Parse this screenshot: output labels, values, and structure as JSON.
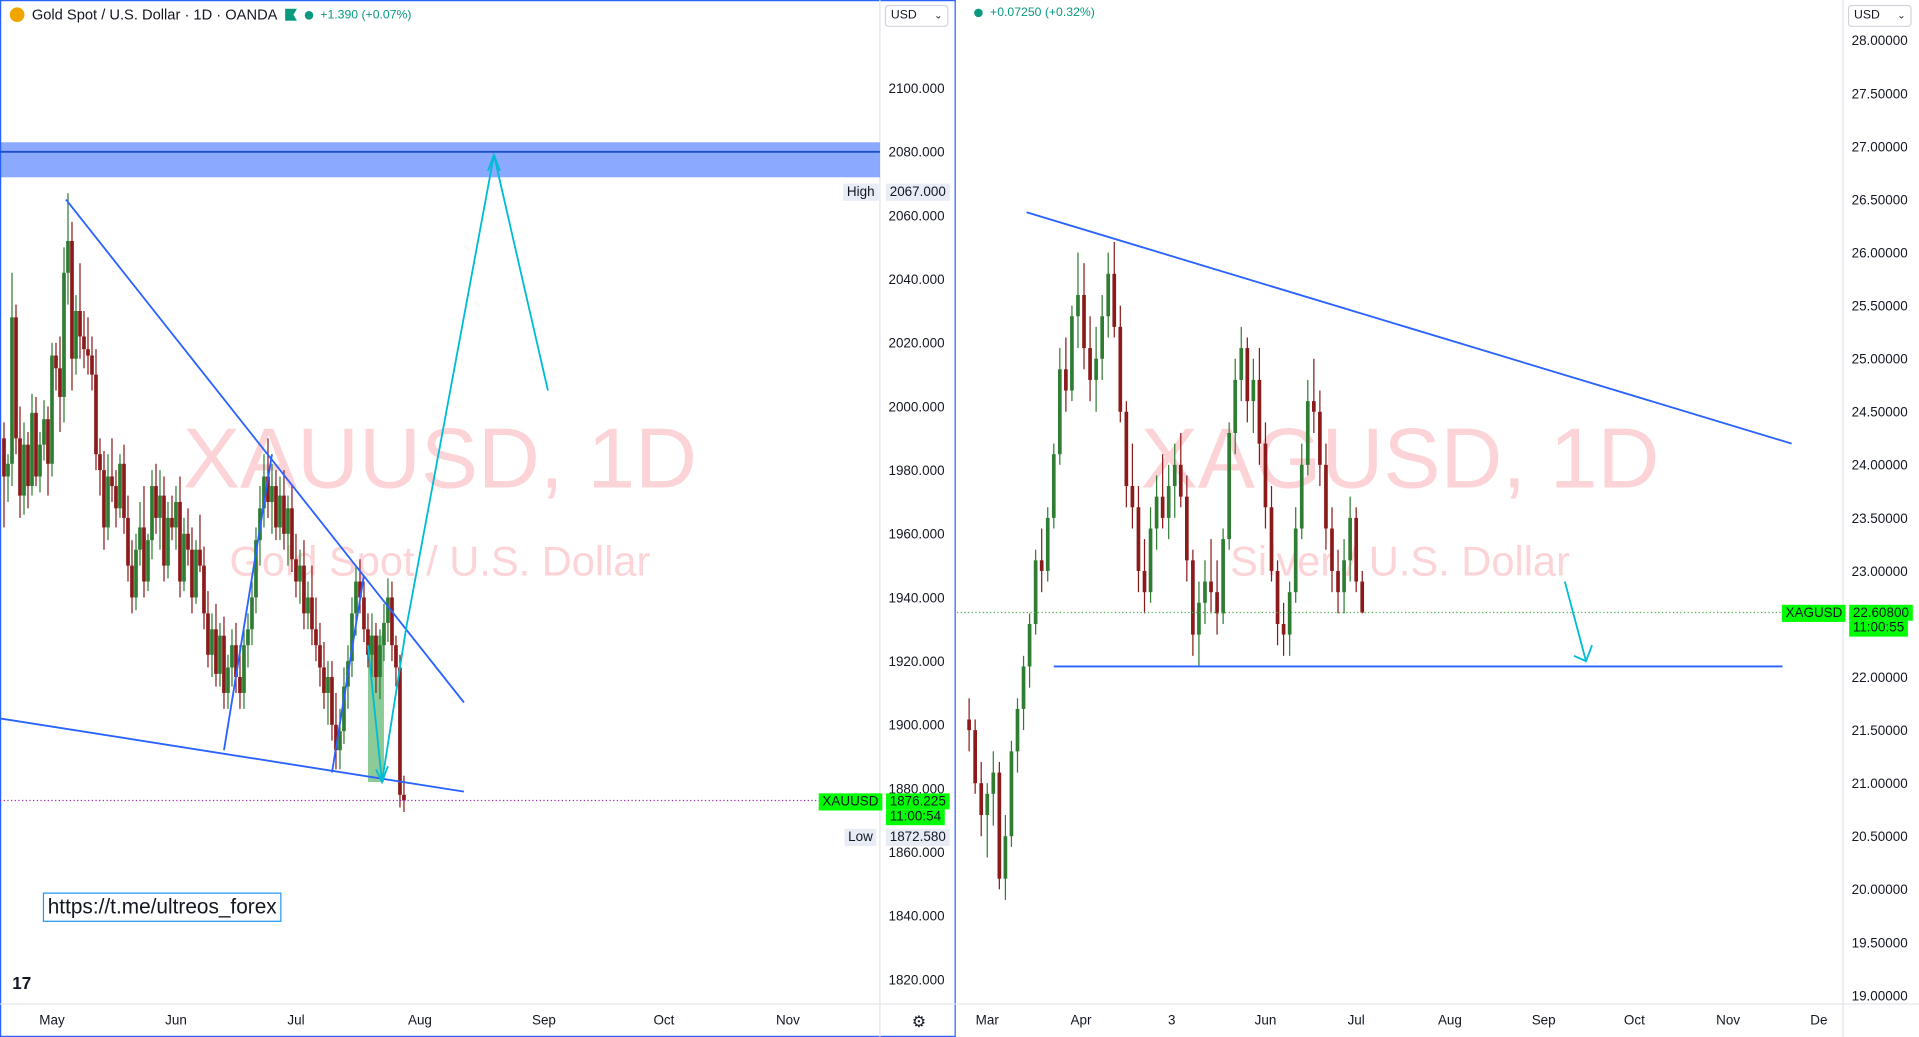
{
  "left": {
    "header_title": "Gold Spot / U.S. Dollar · 1D · OANDA",
    "header_change": "+1.390 (+0.07%)",
    "currency": "USD",
    "watermark_symbol": "XAUUSD, 1D",
    "watermark_name": "Gold Spot / U.S. Dollar",
    "high_label": "High",
    "high_value": "2067.000",
    "low_label": "Low",
    "low_value": "1872.580",
    "price_symbol": "XAUUSD",
    "price_value": "1876.225",
    "price_countdown": "11:00:54",
    "link_text": "https://t.me/ultreos_forex",
    "logo_text": "17",
    "settings_icon": "gear-icon"
  },
  "right": {
    "header_change": "+0.07250 (+0.32%)",
    "currency": "USD",
    "watermark_symbol": "XAGUSD, 1D",
    "watermark_name": "Silver / U.S. Dollar",
    "price_symbol": "XAGUSD",
    "price_value": "22.60800",
    "price_countdown": "11:00:55"
  },
  "chart_data": [
    {
      "type": "candlestick",
      "title": "Gold Spot / U.S. Dollar · 1D · OANDA",
      "symbol": "XAUUSD",
      "ylim": [
        1810,
        2130
      ],
      "y_ticks": [
        1820,
        1840,
        1860,
        1880,
        1900,
        1920,
        1940,
        1960,
        1980,
        2000,
        2020,
        2040,
        2060,
        2080,
        2100
      ],
      "x_ticks": [
        "May",
        "Jun",
        "Jul",
        "Aug",
        "Sep",
        "Oct",
        "Nov"
      ],
      "x_tick_days": [
        0,
        31,
        61,
        92,
        123,
        153,
        184
      ],
      "x_range_days": [
        -13,
        207
      ],
      "last_price": 1876.225,
      "candles": [
        [
          -12,
          1990,
          1995,
          1962,
          1978
        ],
        [
          -11,
          1978,
          1985,
          1970,
          1982
        ],
        [
          -10,
          1982,
          2042,
          1975,
          2028
        ],
        [
          -9,
          2028,
          2032,
          1985,
          1990
        ],
        [
          -8,
          1990,
          2000,
          1965,
          1972
        ],
        [
          -7,
          1972,
          1995,
          1966,
          1988
        ],
        [
          -6,
          1988,
          1992,
          1968,
          1975
        ],
        [
          -5,
          1975,
          2004,
          1972,
          1998
        ],
        [
          -4,
          1998,
          2003,
          1975,
          1978
        ],
        [
          -3,
          1978,
          1992,
          1973,
          1988
        ],
        [
          -2,
          1988,
          2002,
          1983,
          1996
        ],
        [
          -1,
          1996,
          2000,
          1972,
          1982
        ],
        [
          0,
          1982,
          2020,
          1978,
          2016
        ],
        [
          1,
          2016,
          2020,
          2005,
          2012
        ],
        [
          2,
          2012,
          2022,
          1992,
          2003
        ],
        [
          3,
          2003,
          2050,
          1995,
          2042
        ],
        [
          4,
          2042,
          2067,
          2032,
          2052
        ],
        [
          5,
          2052,
          2058,
          2005,
          2015
        ],
        [
          6,
          2015,
          2035,
          2010,
          2030
        ],
        [
          7,
          2030,
          2045,
          2015,
          2022
        ],
        [
          8,
          2022,
          2030,
          2012,
          2018
        ],
        [
          9,
          2018,
          2028,
          2010,
          2016
        ],
        [
          10,
          2016,
          2022,
          2005,
          2010
        ],
        [
          11,
          2010,
          2018,
          1980,
          1985
        ],
        [
          12,
          1985,
          1990,
          1972,
          1980
        ],
        [
          13,
          1980,
          1986,
          1955,
          1962
        ],
        [
          14,
          1962,
          1985,
          1958,
          1978
        ],
        [
          15,
          1978,
          1990,
          1970,
          1975
        ],
        [
          16,
          1975,
          1980,
          1962,
          1968
        ],
        [
          17,
          1968,
          1985,
          1965,
          1982
        ],
        [
          18,
          1982,
          1988,
          1960,
          1965
        ],
        [
          19,
          1965,
          1972,
          1945,
          1950
        ],
        [
          20,
          1950,
          1958,
          1935,
          1940
        ],
        [
          21,
          1940,
          1960,
          1936,
          1955
        ],
        [
          22,
          1955,
          1970,
          1950,
          1962
        ],
        [
          23,
          1962,
          1975,
          1940,
          1945
        ],
        [
          24,
          1945,
          1960,
          1942,
          1958
        ],
        [
          25,
          1958,
          1980,
          1952,
          1975
        ],
        [
          26,
          1975,
          1982,
          1960,
          1965
        ],
        [
          27,
          1965,
          1980,
          1955,
          1972
        ],
        [
          28,
          1972,
          1978,
          1945,
          1950
        ],
        [
          29,
          1950,
          1970,
          1946,
          1965
        ],
        [
          30,
          1965,
          1972,
          1958,
          1962
        ],
        [
          31,
          1962,
          1975,
          1955,
          1970
        ],
        [
          32,
          1970,
          1978,
          1940,
          1945
        ],
        [
          33,
          1945,
          1965,
          1942,
          1960
        ],
        [
          34,
          1960,
          1968,
          1950,
          1955
        ],
        [
          35,
          1955,
          1962,
          1935,
          1940
        ],
        [
          36,
          1940,
          1958,
          1938,
          1955
        ],
        [
          37,
          1955,
          1966,
          1948,
          1950
        ],
        [
          38,
          1950,
          1956,
          1930,
          1935
        ],
        [
          39,
          1935,
          1942,
          1918,
          1922
        ],
        [
          40,
          1922,
          1935,
          1915,
          1930
        ],
        [
          41,
          1930,
          1938,
          1912,
          1916
        ],
        [
          42,
          1916,
          1932,
          1912,
          1928
        ],
        [
          43,
          1928,
          1934,
          1905,
          1910
        ],
        [
          44,
          1910,
          1922,
          1905,
          1918
        ],
        [
          45,
          1918,
          1930,
          1912,
          1925
        ],
        [
          46,
          1925,
          1932,
          1910,
          1915
        ],
        [
          47,
          1915,
          1925,
          1905,
          1910
        ],
        [
          48,
          1910,
          1930,
          1905,
          1925
        ],
        [
          49,
          1925,
          1935,
          1918,
          1930
        ],
        [
          50,
          1930,
          1945,
          1925,
          1940
        ],
        [
          51,
          1940,
          1962,
          1935,
          1958
        ],
        [
          52,
          1958,
          1975,
          1950,
          1968
        ],
        [
          53,
          1968,
          1985,
          1962,
          1978
        ],
        [
          54,
          1978,
          1990,
          1965,
          1970
        ],
        [
          55,
          1970,
          1982,
          1960,
          1975
        ],
        [
          56,
          1975,
          1980,
          1958,
          1962
        ],
        [
          57,
          1962,
          1978,
          1958,
          1972
        ],
        [
          58,
          1972,
          1980,
          1955,
          1960
        ],
        [
          59,
          1960,
          1972,
          1950,
          1968
        ],
        [
          60,
          1968,
          1975,
          1948,
          1952
        ],
        [
          61,
          1952,
          1960,
          1940,
          1945
        ],
        [
          62,
          1945,
          1955,
          1938,
          1950
        ],
        [
          63,
          1950,
          1958,
          1930,
          1935
        ],
        [
          64,
          1935,
          1945,
          1930,
          1940
        ],
        [
          65,
          1940,
          1950,
          1925,
          1930
        ],
        [
          66,
          1930,
          1940,
          1920,
          1925
        ],
        [
          67,
          1925,
          1932,
          1912,
          1918
        ],
        [
          68,
          1918,
          1926,
          1905,
          1910
        ],
        [
          69,
          1910,
          1920,
          1900,
          1915
        ],
        [
          70,
          1915,
          1920,
          1895,
          1900
        ],
        [
          71,
          1900,
          1910,
          1886,
          1892
        ],
        [
          72,
          1892,
          1905,
          1886,
          1898
        ],
        [
          73,
          1898,
          1918,
          1894,
          1912
        ],
        [
          74,
          1912,
          1925,
          1905,
          1920
        ],
        [
          75,
          1920,
          1940,
          1915,
          1935
        ],
        [
          76,
          1935,
          1950,
          1928,
          1945
        ],
        [
          77,
          1945,
          1952,
          1935,
          1940
        ],
        [
          78,
          1940,
          1945,
          1926,
          1930
        ],
        [
          79,
          1930,
          1935,
          1918,
          1922
        ],
        [
          80,
          1922,
          1935,
          1915,
          1928
        ],
        [
          81,
          1928,
          1932,
          1910,
          1915
        ],
        [
          82,
          1915,
          1930,
          1908,
          1925
        ],
        [
          83,
          1925,
          1938,
          1920,
          1932
        ],
        [
          84,
          1932,
          1946,
          1926,
          1940
        ],
        [
          85,
          1940,
          1945,
          1920,
          1925
        ],
        [
          86,
          1925,
          1928,
          1912,
          1918
        ],
        [
          87,
          1918,
          1922,
          1874,
          1878
        ],
        [
          88,
          1878,
          1884,
          1872.58,
          1876.225
        ]
      ]
    },
    {
      "type": "candlestick",
      "symbol": "XAGUSD",
      "ylim": [
        18.85,
        28.3
      ],
      "y_ticks": [
        19.0,
        19.5,
        20.0,
        20.5,
        21.0,
        21.5,
        22.0,
        22.5,
        23.0,
        23.5,
        24.0,
        24.5,
        25.0,
        25.5,
        26.0,
        26.5,
        27.0,
        27.5,
        28.0
      ],
      "y_tick_labels": [
        "19.00000",
        "19.50000",
        "20.00000",
        "20.50000",
        "21.00000",
        "21.50000",
        "22.00000",
        "22.50000",
        "23.00000",
        "23.50000",
        "24.00000",
        "24.50000",
        "25.00000",
        "25.50000",
        "26.00000",
        "26.50000",
        "27.00000",
        "27.50000",
        "28.00000"
      ],
      "x_ticks": [
        "Mar",
        "Apr",
        "3",
        "Jun",
        "Jul",
        "Aug",
        "Sep",
        "Oct",
        "Nov",
        "De"
      ],
      "x_tick_days": [
        0,
        31,
        61,
        92,
        122,
        153,
        184,
        214,
        245,
        275
      ],
      "x_range_days": [
        -10,
        283
      ],
      "last_price": 22.608,
      "candles": [
        [
          -6,
          21.6,
          21.8,
          21.3,
          21.5
        ],
        [
          -4,
          21.5,
          21.6,
          20.9,
          21.0
        ],
        [
          -2,
          21.0,
          21.2,
          20.5,
          20.7
        ],
        [
          0,
          20.7,
          21.0,
          20.3,
          20.9
        ],
        [
          2,
          20.9,
          21.3,
          20.6,
          21.1
        ],
        [
          4,
          21.1,
          21.2,
          20.0,
          20.1
        ],
        [
          6,
          20.1,
          20.7,
          19.9,
          20.5
        ],
        [
          8,
          20.5,
          21.4,
          20.4,
          21.3
        ],
        [
          10,
          21.3,
          21.8,
          21.1,
          21.7
        ],
        [
          12,
          21.7,
          22.2,
          21.5,
          22.1
        ],
        [
          14,
          22.1,
          22.6,
          21.9,
          22.5
        ],
        [
          16,
          22.5,
          23.2,
          22.4,
          23.1
        ],
        [
          18,
          23.1,
          23.4,
          22.8,
          23.0
        ],
        [
          20,
          23.0,
          23.6,
          22.9,
          23.5
        ],
        [
          22,
          23.5,
          24.2,
          23.4,
          24.1
        ],
        [
          24,
          24.1,
          25.1,
          24.0,
          24.9
        ],
        [
          26,
          24.9,
          25.2,
          24.5,
          24.7
        ],
        [
          28,
          24.7,
          25.5,
          24.6,
          25.4
        ],
        [
          30,
          25.4,
          26.0,
          25.1,
          25.6
        ],
        [
          32,
          25.6,
          25.9,
          24.9,
          25.1
        ],
        [
          34,
          25.1,
          25.4,
          24.6,
          24.8
        ],
        [
          36,
          24.8,
          25.3,
          24.5,
          25.0
        ],
        [
          38,
          25.0,
          25.6,
          24.8,
          25.4
        ],
        [
          40,
          25.4,
          26.0,
          25.2,
          25.8
        ],
        [
          42,
          25.8,
          26.1,
          25.2,
          25.3
        ],
        [
          44,
          25.3,
          25.5,
          24.4,
          24.5
        ],
        [
          46,
          24.5,
          24.6,
          23.6,
          23.8
        ],
        [
          48,
          23.8,
          24.2,
          23.4,
          23.6
        ],
        [
          50,
          23.6,
          23.8,
          22.8,
          23.0
        ],
        [
          52,
          23.0,
          23.3,
          22.6,
          22.8
        ],
        [
          54,
          22.8,
          23.6,
          22.7,
          23.4
        ],
        [
          56,
          23.4,
          23.9,
          23.2,
          23.7
        ],
        [
          58,
          23.7,
          24.1,
          23.4,
          23.5
        ],
        [
          60,
          23.5,
          24.0,
          23.3,
          23.8
        ],
        [
          62,
          23.8,
          24.2,
          23.5,
          24.0
        ],
        [
          64,
          24.0,
          24.3,
          23.6,
          23.7
        ],
        [
          66,
          23.7,
          23.9,
          22.9,
          23.1
        ],
        [
          68,
          23.1,
          23.2,
          22.2,
          22.4
        ],
        [
          70,
          22.4,
          22.9,
          22.1,
          22.7
        ],
        [
          72,
          22.7,
          23.1,
          22.5,
          22.9
        ],
        [
          74,
          22.9,
          23.3,
          22.6,
          22.8
        ],
        [
          76,
          22.8,
          23.1,
          22.4,
          22.6
        ],
        [
          78,
          22.6,
          23.4,
          22.5,
          23.3
        ],
        [
          80,
          23.3,
          24.4,
          23.2,
          24.3
        ],
        [
          82,
          24.3,
          25.0,
          24.1,
          24.8
        ],
        [
          84,
          24.8,
          25.3,
          24.6,
          25.1
        ],
        [
          86,
          25.1,
          25.2,
          24.4,
          24.6
        ],
        [
          88,
          24.6,
          25.0,
          24.3,
          24.8
        ],
        [
          90,
          24.8,
          25.1,
          24.0,
          24.2
        ],
        [
          92,
          24.2,
          24.4,
          23.4,
          23.6
        ],
        [
          94,
          23.6,
          23.8,
          22.9,
          23.0
        ],
        [
          96,
          23.0,
          23.1,
          22.3,
          22.5
        ],
        [
          98,
          22.5,
          22.7,
          22.2,
          22.4
        ],
        [
          100,
          22.4,
          22.9,
          22.2,
          22.8
        ],
        [
          102,
          22.8,
          23.6,
          22.7,
          23.4
        ],
        [
          104,
          23.4,
          24.2,
          23.3,
          24.0
        ],
        [
          106,
          24.0,
          24.8,
          23.9,
          24.6
        ],
        [
          108,
          24.6,
          25.0,
          24.3,
          24.5
        ],
        [
          110,
          24.5,
          24.7,
          23.8,
          24.0
        ],
        [
          112,
          24.0,
          24.2,
          23.2,
          23.4
        ],
        [
          114,
          23.4,
          23.6,
          22.8,
          23.0
        ],
        [
          116,
          23.0,
          23.2,
          22.6,
          22.8
        ],
        [
          118,
          22.8,
          23.3,
          22.6,
          23.1
        ],
        [
          120,
          23.1,
          23.7,
          22.9,
          23.5
        ],
        [
          122,
          23.5,
          23.6,
          22.8,
          22.9
        ],
        [
          124,
          22.9,
          23.0,
          22.6,
          22.608
        ]
      ]
    }
  ]
}
